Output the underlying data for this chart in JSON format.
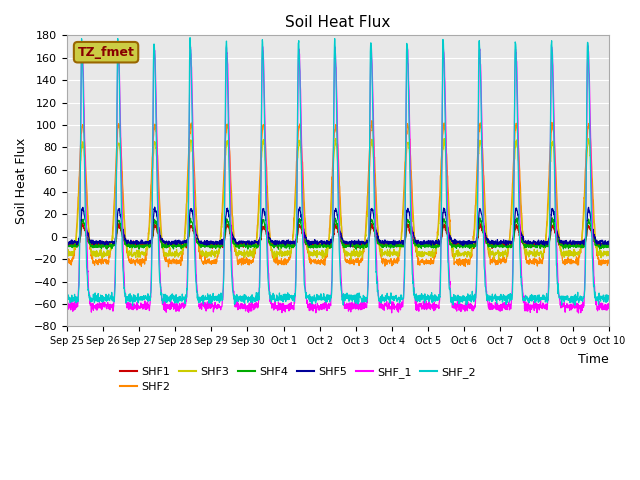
{
  "title": "Soil Heat Flux",
  "ylabel": "Soil Heat Flux",
  "xlabel": "Time",
  "ylim": [
    -80,
    180
  ],
  "yticks": [
    -80,
    -60,
    -40,
    -20,
    0,
    20,
    40,
    60,
    80,
    100,
    120,
    140,
    160,
    180
  ],
  "xtick_labels": [
    "Sep 25",
    "Sep 26",
    "Sep 27",
    "Sep 28",
    "Sep 29",
    "Sep 30",
    "Oct 1",
    "Oct 2",
    "Oct 3",
    "Oct 4",
    "Oct 5",
    "Oct 6",
    "Oct 7",
    "Oct 8",
    "Oct 9",
    "Oct 10"
  ],
  "colors": {
    "SHF1": "#cc0000",
    "SHF2": "#ff8800",
    "SHF3": "#cccc00",
    "SHF4": "#00aa00",
    "SHF5": "#000099",
    "SHF_1": "#ff00ff",
    "SHF_2": "#00cccc"
  },
  "annotation_text": "TZ_fmet",
  "annotation_color": "#880000",
  "annotation_bg": "#cccc44",
  "background_color": "#e8e8e8",
  "n_days": 15,
  "pts_per_day": 144
}
